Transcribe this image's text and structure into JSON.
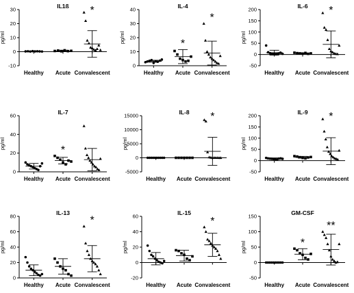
{
  "chart_data": [
    {
      "type": "scatter",
      "title": "IL1ß",
      "ylabel": "pg/ml",
      "categories": [
        "Healthy",
        "Acute",
        "Convalescent"
      ],
      "ylim": [
        -10,
        30
      ],
      "yticks": [
        -10,
        0,
        10,
        20,
        30
      ],
      "series": [
        {
          "values": [
            0.2,
            0.3,
            0.1,
            0.4,
            0.2,
            0.3,
            0.2,
            0.1
          ],
          "marker": "circle",
          "mean": 0.2,
          "sd": 0.3
        },
        {
          "values": [
            0.5,
            0.8,
            0.3,
            1.0,
            0.4,
            0.6
          ],
          "marker": "square",
          "mean": 0.6,
          "sd": 0.5
        },
        {
          "values": [
            28,
            22,
            8,
            6,
            3,
            2.5,
            1.5,
            1.0,
            2.0,
            4.5,
            1.2
          ],
          "marker": "triangle",
          "mean": 5.5,
          "sd": 9.5
        }
      ],
      "annotations": [
        {
          "category": "Convalescent",
          "text": "*"
        }
      ]
    },
    {
      "type": "scatter",
      "title": "IL-4",
      "ylabel": "pg/ml",
      "categories": [
        "Healthy",
        "Acute",
        "Convalescent"
      ],
      "ylim": [
        0,
        40
      ],
      "yticks": [
        0,
        10,
        20,
        30,
        40
      ],
      "series": [
        {
          "values": [
            2.5,
            3.0,
            3.5,
            4.0,
            2.0,
            3.2,
            2.8,
            3.6,
            4.4
          ],
          "marker": "circle",
          "mean": 3.2,
          "sd": 0.7
        },
        {
          "values": [
            10.5,
            8.0,
            5.0,
            4.0,
            3.0,
            3.5,
            6.5
          ],
          "marker": "square",
          "mean": 6.5,
          "sd": 5.0
        },
        {
          "values": [
            30,
            18,
            10,
            8,
            6,
            5,
            4,
            3,
            2,
            1.5,
            7
          ],
          "marker": "triangle",
          "mean": 9,
          "sd": 8.5
        }
      ],
      "annotations": [
        {
          "category": "Acute",
          "text": "*"
        },
        {
          "category": "Convalescent",
          "text": "*"
        }
      ]
    },
    {
      "type": "scatter",
      "title": "IL-6",
      "ylabel": "pg/ml",
      "categories": [
        "Healthy",
        "Acute",
        "Convalescent"
      ],
      "ylim": [
        -50,
        200
      ],
      "yticks": [
        -50,
        0,
        50,
        100,
        150,
        200
      ],
      "series": [
        {
          "values": [
            40,
            10,
            6,
            4,
            3,
            2,
            5,
            8,
            3
          ],
          "marker": "circle",
          "mean": 8,
          "sd": 11
        },
        {
          "values": [
            8,
            6,
            5,
            4,
            7,
            3,
            5
          ],
          "marker": "square",
          "mean": 5,
          "sd": 2
        },
        {
          "values": [
            185,
            120,
            110,
            65,
            25,
            15,
            10,
            5,
            3,
            2,
            40
          ],
          "marker": "triangle",
          "mean": 45,
          "sd": 60
        }
      ],
      "annotations": [
        {
          "category": "Convalescent",
          "text": "*"
        }
      ]
    },
    {
      "type": "scatter",
      "title": "IL-7",
      "ylabel": "pg/ml",
      "categories": [
        "Healthy",
        "Acute",
        "Convalescent"
      ],
      "ylim": [
        0,
        60
      ],
      "yticks": [
        0,
        20,
        40,
        60
      ],
      "series": [
        {
          "values": [
            10,
            8,
            7,
            6,
            5,
            4,
            3,
            2,
            6,
            9
          ],
          "marker": "circle",
          "mean": 6,
          "sd": 3
        },
        {
          "values": [
            17,
            15,
            13,
            10,
            8,
            12,
            11
          ],
          "marker": "square",
          "mean": 12,
          "sd": 3.5
        },
        {
          "values": [
            49,
            25,
            18,
            15,
            12,
            10,
            8,
            6,
            5,
            3,
            2,
            14
          ],
          "marker": "triangle",
          "mean": 13,
          "sd": 12
        }
      ],
      "annotations": [
        {
          "category": "Acute",
          "text": "*"
        }
      ]
    },
    {
      "type": "scatter",
      "title": "IL-8",
      "ylabel": "pg/ml",
      "categories": [
        "Healthy",
        "Acute",
        "Convalescent"
      ],
      "ylim": [
        -5000,
        15000
      ],
      "yticks": [
        -5000,
        0,
        5000,
        10000,
        15000
      ],
      "series": [
        {
          "values": [
            0,
            0,
            0,
            0,
            0,
            0,
            0,
            0,
            0,
            0
          ],
          "marker": "circle",
          "mean": 0,
          "sd": 0
        },
        {
          "values": [
            0,
            0,
            0,
            0,
            0,
            0,
            0
          ],
          "marker": "square",
          "mean": 0,
          "sd": 0
        },
        {
          "values": [
            13500,
            13000,
            2000,
            200,
            100,
            50,
            30,
            20,
            10,
            5,
            5
          ],
          "marker": "triangle",
          "mean": 2300,
          "sd": 5000
        }
      ],
      "annotations": [
        {
          "category": "Convalescent",
          "text": "*"
        }
      ]
    },
    {
      "type": "scatter",
      "title": "IL-9",
      "ylabel": "pg/ml",
      "categories": [
        "Healthy",
        "Acute",
        "Convalescent"
      ],
      "ylim": [
        -50,
        200
      ],
      "yticks": [
        -50,
        0,
        50,
        100,
        150,
        200
      ],
      "series": [
        {
          "values": [
            12,
            10,
            9,
            8,
            7,
            6,
            5,
            9,
            10,
            8
          ],
          "marker": "circle",
          "mean": 9,
          "sd": 3
        },
        {
          "values": [
            20,
            18,
            15,
            12,
            10,
            14,
            16
          ],
          "marker": "square",
          "mean": 15,
          "sd": 4
        },
        {
          "values": [
            185,
            130,
            95,
            60,
            40,
            30,
            20,
            15,
            10,
            8,
            5,
            45
          ],
          "marker": "triangle",
          "mean": 42,
          "sd": 60
        }
      ],
      "annotations": [
        {
          "category": "Convalescent",
          "text": "*"
        }
      ]
    },
    {
      "type": "scatter",
      "title": "IL-13",
      "ylabel": "pg/ml",
      "categories": [
        "Healthy",
        "Acute",
        "Convalescent"
      ],
      "ylim": [
        0,
        80
      ],
      "yticks": [
        0,
        20,
        40,
        60,
        80
      ],
      "series": [
        {
          "values": [
            27,
            20,
            15,
            12,
            10,
            8,
            6,
            4,
            3,
            5
          ],
          "marker": "circle",
          "mean": 10,
          "sd": 7
        },
        {
          "values": [
            25,
            20,
            15,
            12,
            10,
            5,
            3
          ],
          "marker": "square",
          "mean": 15,
          "sd": 10
        },
        {
          "values": [
            67,
            45,
            35,
            30,
            25,
            22,
            20,
            18,
            15,
            10,
            5
          ],
          "marker": "triangle",
          "mean": 25,
          "sd": 17
        }
      ],
      "annotations": [
        {
          "category": "Convalescent",
          "text": "*"
        }
      ]
    },
    {
      "type": "scatter",
      "title": "IL-15",
      "ylabel": "pg/ml",
      "categories": [
        "Healthy",
        "Acute",
        "Convalescent"
      ],
      "ylim": [
        -20,
        60
      ],
      "yticks": [
        -20,
        0,
        20,
        40,
        60
      ],
      "series": [
        {
          "values": [
            22,
            15,
            10,
            8,
            5,
            3,
            1,
            0,
            -1,
            2
          ],
          "marker": "circle",
          "mean": 5,
          "sd": 8
        },
        {
          "values": [
            16,
            15,
            12,
            10,
            5,
            3,
            8
          ],
          "marker": "square",
          "mean": 9,
          "sd": 7
        },
        {
          "values": [
            46,
            40,
            30,
            28,
            25,
            22,
            20,
            18,
            15,
            10,
            5
          ],
          "marker": "triangle",
          "mean": 23,
          "sd": 15
        }
      ],
      "annotations": [
        {
          "category": "Convalescent",
          "text": "*"
        }
      ]
    },
    {
      "type": "scatter",
      "title": "GM-CSF",
      "ylabel": "pg/ml",
      "categories": [
        "Healthy",
        "Acute",
        "Convalescent"
      ],
      "ylim": [
        -50,
        150
      ],
      "yticks": [
        -50,
        0,
        50,
        100,
        150
      ],
      "series": [
        {
          "values": [
            0,
            0,
            0,
            0,
            0,
            0,
            0,
            0,
            0,
            0
          ],
          "marker": "circle",
          "mean": 0,
          "sd": 0
        },
        {
          "values": [
            45,
            40,
            30,
            25,
            15,
            10,
            28
          ],
          "marker": "square",
          "mean": 27,
          "sd": 18
        },
        {
          "values": [
            100,
            90,
            80,
            60,
            40,
            20,
            10,
            5,
            0,
            2,
            60
          ],
          "marker": "triangle",
          "mean": 42,
          "sd": 50
        }
      ],
      "annotations": [
        {
          "category": "Acute",
          "text": "*"
        },
        {
          "category": "Convalescent",
          "text": "**"
        }
      ]
    }
  ]
}
